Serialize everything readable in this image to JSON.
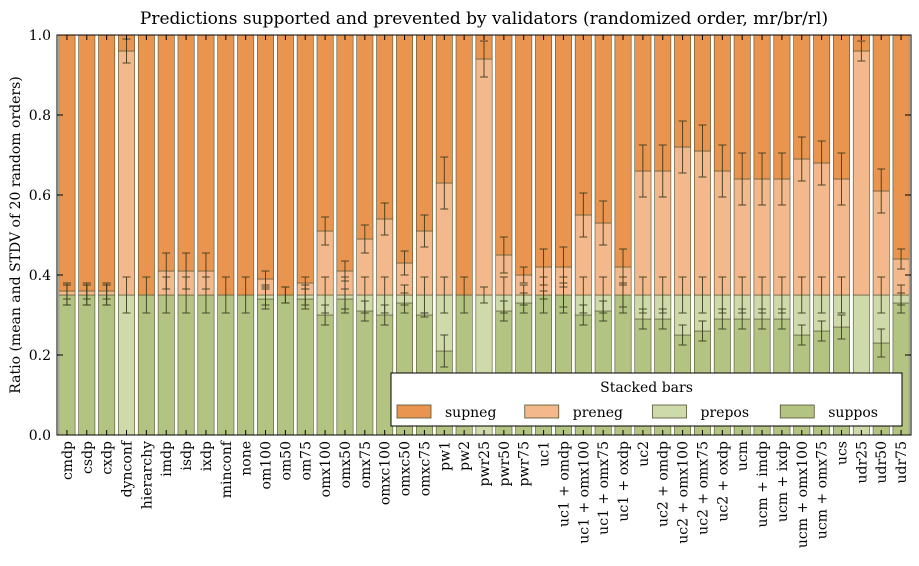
{
  "chart_data": {
    "type": "bar",
    "stacked": true,
    "title": "Predictions supported and prevented by validators (randomized order, mr/br/rl)",
    "xlabel": "",
    "ylabel": "Ratio (mean and STDV of 20 random orders)",
    "ylim": [
      0,
      1
    ],
    "yticks": [
      "0.0",
      "0.2",
      "0.4",
      "0.6",
      "0.8",
      "1.0"
    ],
    "legend": {
      "title": "Stacked bars",
      "placement": "lower-right",
      "entries": [
        "supneg",
        "preneg",
        "prepos",
        "suppos"
      ]
    },
    "colors": {
      "supneg": "#e9954f",
      "preneg": "#f3b88b",
      "prepos": "#cfdaab",
      "suppos": "#b3c382",
      "edge": "#505030"
    },
    "categories": [
      "cmdp",
      "csdp",
      "cxdp",
      "dynconf",
      "hierarchy",
      "imdp",
      "isdp",
      "ixdp",
      "minconf",
      "none",
      "om100",
      "om50",
      "om75",
      "omx100",
      "omx50",
      "omx75",
      "omxc100",
      "omxc50",
      "omxc75",
      "pw1",
      "pw2",
      "pwr25",
      "pwr50",
      "pwr75",
      "uc1",
      "uc1 + omdp",
      "uc1 + omx100",
      "uc1 + omx75",
      "uc1 + oxdp",
      "uc2",
      "uc2 + omdp",
      "uc2 + omx100",
      "uc2 + omx75",
      "uc2 + oxdp",
      "ucm",
      "ucm + imdp",
      "ucm + ixdp",
      "ucm + omx100",
      "ucm + omx75",
      "ucs",
      "udr25",
      "udr50",
      "udr75"
    ],
    "series": [
      {
        "name": "suppos",
        "values": [
          0.35,
          0.35,
          0.35,
          0.0,
          0.35,
          0.35,
          0.35,
          0.35,
          0.35,
          0.35,
          0.34,
          0.35,
          0.34,
          0.3,
          0.34,
          0.31,
          0.3,
          0.33,
          0.3,
          0.21,
          0.35,
          0.0,
          0.31,
          0.33,
          0.35,
          0.35,
          0.3,
          0.31,
          0.35,
          0.29,
          0.29,
          0.25,
          0.26,
          0.29,
          0.29,
          0.29,
          0.29,
          0.25,
          0.26,
          0.27,
          0.0,
          0.23,
          0.33
        ]
      },
      {
        "name": "prepos",
        "values": [
          0.0,
          0.0,
          0.0,
          0.35,
          0.0,
          0.0,
          0.0,
          0.0,
          0.0,
          0.0,
          0.01,
          0.0,
          0.01,
          0.05,
          0.01,
          0.04,
          0.05,
          0.02,
          0.05,
          0.14,
          0.0,
          0.35,
          0.04,
          0.02,
          0.0,
          0.0,
          0.05,
          0.04,
          0.0,
          0.06,
          0.06,
          0.1,
          0.09,
          0.06,
          0.06,
          0.06,
          0.06,
          0.1,
          0.09,
          0.08,
          0.35,
          0.12,
          0.02
        ]
      },
      {
        "name": "preneg",
        "values": [
          0.01,
          0.01,
          0.01,
          0.61,
          0.0,
          0.06,
          0.06,
          0.06,
          0.0,
          0.0,
          0.04,
          0.0,
          0.03,
          0.16,
          0.06,
          0.14,
          0.19,
          0.08,
          0.16,
          0.28,
          0.0,
          0.59,
          0.1,
          0.05,
          0.07,
          0.07,
          0.2,
          0.18,
          0.07,
          0.31,
          0.31,
          0.37,
          0.36,
          0.31,
          0.29,
          0.29,
          0.29,
          0.34,
          0.33,
          0.29,
          0.61,
          0.26,
          0.09
        ]
      },
      {
        "name": "supneg",
        "values": [
          0.64,
          0.64,
          0.64,
          0.04,
          0.65,
          0.59,
          0.59,
          0.59,
          0.65,
          0.65,
          0.61,
          0.65,
          0.62,
          0.49,
          0.59,
          0.51,
          0.46,
          0.57,
          0.49,
          0.37,
          0.65,
          0.06,
          0.55,
          0.6,
          0.58,
          0.58,
          0.45,
          0.47,
          0.58,
          0.34,
          0.34,
          0.28,
          0.29,
          0.34,
          0.36,
          0.36,
          0.36,
          0.31,
          0.32,
          0.36,
          0.04,
          0.39,
          0.56
        ]
      }
    ],
    "boundary_stdv": [
      [
        0.025,
        0.025,
        0.025,
        0.0,
        0.0,
        0.0,
        0.0,
        0.0,
        0.0,
        0.0,
        0.025,
        0.02,
        0.025,
        0.025,
        0.025,
        0.025,
        0.025,
        0.025,
        0.005,
        0.04,
        0.0,
        0.0,
        0.025,
        0.025,
        0.01,
        0.03,
        0.025,
        0.025,
        0.03,
        0.025,
        0.025,
        0.025,
        0.025,
        0.025,
        0.025,
        0.025,
        0.025,
        0.025,
        0.025,
        0.03,
        0.0,
        0.035,
        0.025
      ],
      [
        0.025,
        0.025,
        0.025,
        0.045,
        0.045,
        0.045,
        0.045,
        0.045,
        0.045,
        0.045,
        0.025,
        0.02,
        0.025,
        0.045,
        0.045,
        0.045,
        0.045,
        0.025,
        0.045,
        0.045,
        0.045,
        0.02,
        0.045,
        0.025,
        0.045,
        0.045,
        0.045,
        0.045,
        0.045,
        0.045,
        0.045,
        0.045,
        0.045,
        0.045,
        0.045,
        0.045,
        0.045,
        0.045,
        0.045,
        0.045,
        0.0,
        0.045,
        0.025
      ],
      [
        0.02,
        0.02,
        0.02,
        0.03,
        0.0,
        0.045,
        0.045,
        0.045,
        0.0,
        0.0,
        0.02,
        0.02,
        0.015,
        0.035,
        0.025,
        0.035,
        0.04,
        0.03,
        0.04,
        0.065,
        0.0,
        0.045,
        0.045,
        0.02,
        0.045,
        0.05,
        0.055,
        0.055,
        0.045,
        0.065,
        0.065,
        0.065,
        0.065,
        0.065,
        0.065,
        0.065,
        0.065,
        0.055,
        0.055,
        0.065,
        0.025,
        0.055,
        0.025
      ]
    ]
  }
}
